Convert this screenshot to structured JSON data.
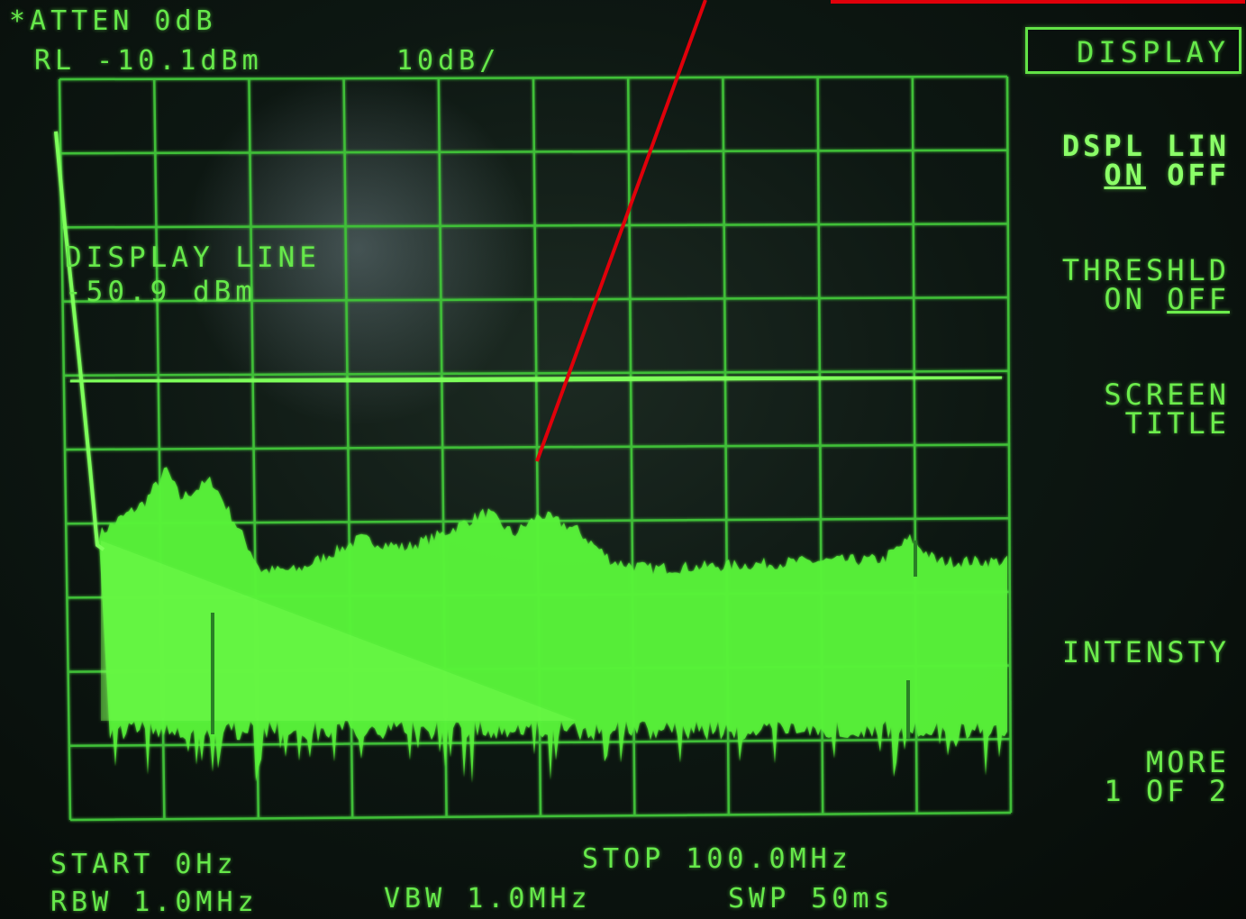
{
  "header": {
    "atten": "*ATTEN 0dB",
    "ref_level": "RL -10.1dBm",
    "scale": "10dB/"
  },
  "display_line": {
    "label": "DISPLAY LINE",
    "value": "-50.9 dBm"
  },
  "footer": {
    "start": "START 0Hz",
    "stop": "STOP 100.0MHz",
    "rbw": "RBW 1.0MHz",
    "vbw": "VBW 1.0MHz",
    "swp": "SWP 50ms"
  },
  "softkeys": {
    "menu_title": "DISPLAY",
    "dspl_lin_title": "DSPL LIN",
    "dspl_lin_on": "ON",
    "dspl_lin_off": "OFF",
    "threshld_title": "THRESHLD",
    "threshld_on": "ON",
    "threshld_off": "OFF",
    "screen_title_1": "SCREEN",
    "screen_title_2": "TITLE",
    "intensity": "INTENSTY",
    "more_1": "MORE",
    "more_2": "1 OF 2"
  },
  "colors": {
    "trace": "#58f23a",
    "graticule": "#3fbf37",
    "annotation_arrow": "#e0000a"
  }
}
